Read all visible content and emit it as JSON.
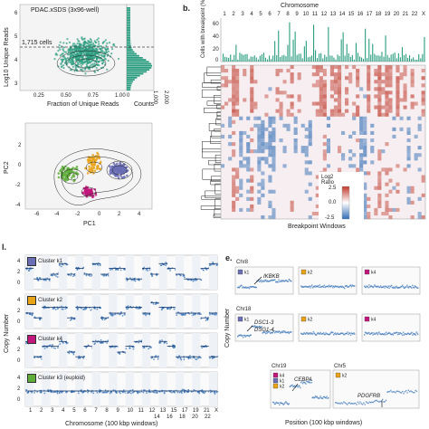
{
  "panel_a": {
    "title": "PDAC.xSDS (3x96-well)",
    "threshold_label": "1,715 cells",
    "xlabel": "Fraction of Unique Reads",
    "ylabel": "Log10 Unique Reads",
    "xticks": [
      "0.25",
      "0.50",
      "0.75",
      "1.00"
    ],
    "yticks": [
      "3",
      "4",
      "5",
      "6"
    ],
    "marginal_label": "Counts",
    "marginal_ticks": [
      "0",
      "1,000",
      "2,000"
    ],
    "colors": {
      "points": "#2a9d7f",
      "dense": "#1b6b55"
    }
  },
  "panel_b": {
    "letter": "b.",
    "top_label": "Chromosome",
    "chromosomes": [
      "1",
      "2",
      "3",
      "4",
      "5",
      "6",
      "7",
      "8",
      "9",
      "10",
      "11",
      "12",
      "13",
      "14",
      "15",
      "16",
      "17",
      "18",
      "19",
      "20",
      "21",
      "22",
      "X"
    ],
    "bar_ylabel": "Cells with breakpoint (%)",
    "bar_yticks": [
      "0",
      "20",
      "40",
      "60"
    ],
    "xlabel": "Breakpoint Windows",
    "legend_title": "Log2 Ratio",
    "legend_ticks": [
      "2.5",
      "0.0",
      "-2.5"
    ],
    "colors": {
      "bar": "#2a9d7f",
      "high": "#c0392b",
      "low": "#2f6db5"
    }
  },
  "panel_c": {
    "xlabel": "PC1",
    "ylabel": "PC2",
    "xticks": [
      "-6",
      "-4",
      "-2",
      "0",
      "2",
      "4"
    ],
    "yticks": [
      "2",
      "0",
      "-2",
      "-4"
    ],
    "colors": {
      "k1": "#6a6fb5",
      "k2": "#e8a317",
      "k3": "#5fae3a",
      "k4": "#c2187d"
    }
  },
  "panel_d": {
    "letter": "l.",
    "clusters": [
      {
        "label": "Cluster k1",
        "color": "#6a6fb5"
      },
      {
        "label": "Cluster k2",
        "color": "#e8a317"
      },
      {
        "label": "Cluster k4",
        "color": "#c2187d"
      },
      {
        "label": "Cluster k3 (euploid)",
        "color": "#5fae3a"
      }
    ],
    "ylabel": "Copy Number",
    "yticks": [
      "4",
      "2",
      "0"
    ],
    "chrom_ticks_top": [
      "1",
      "2",
      "3",
      "4",
      "5",
      "6",
      "7",
      "8",
      "9",
      "10",
      "11",
      "12",
      "13",
      "15",
      "17",
      "19",
      "21",
      "X"
    ],
    "chrom_ticks_bottom": [
      "14",
      "16",
      "18",
      "20",
      "22"
    ],
    "xlabel": "Chromosome (100 kbp windows)"
  },
  "panel_e": {
    "letter": "e.",
    "ylabel": "Copy Number",
    "xlabel": "Position (100 kbp windows)",
    "rows": [
      {
        "chrom": "Chr8",
        "annotation": "IKBKB",
        "tags": [
          "k1",
          "k2",
          "k4"
        ]
      },
      {
        "chrom": "Chr18",
        "annotation": "DSC1-3\nDSG1-4",
        "tags": [
          "k1",
          "k2",
          "k4"
        ]
      },
      {
        "chrom": "Chr19",
        "annotation": "CEBPA",
        "tags": [
          "k4",
          "k1",
          "k2"
        ]
      },
      {
        "chrom": "Chr5",
        "annotation": "PDGFRB",
        "tags": [
          "k2"
        ]
      }
    ],
    "annot_ikbkb": "IKBKB",
    "annot_dsc": "DSC1-3",
    "annot_dsg": "DSG1-4",
    "annot_cebpa": "CEBPA",
    "annot_pdgfrb": "PDGFRB",
    "tag_k1": "k1",
    "tag_k2": "k2",
    "tag_k4": "k4"
  }
}
